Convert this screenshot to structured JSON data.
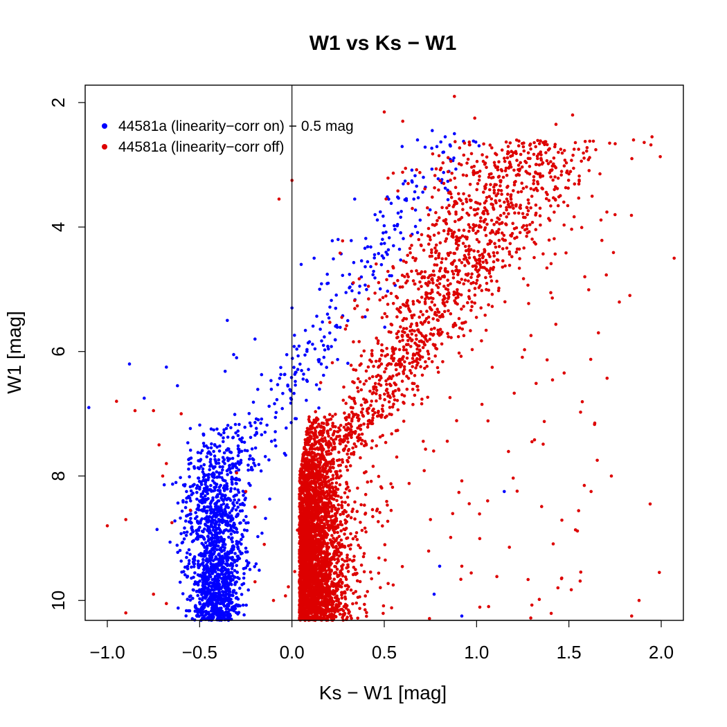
{
  "chart_data": {
    "type": "scatter",
    "title": "W1 vs Ks − W1",
    "xlabel": "Ks − W1 [mag]",
    "ylabel": "W1 [mag]",
    "xlim": [
      -1.12,
      2.12
    ],
    "ylim": [
      10.32,
      1.72
    ],
    "y_inverted": true,
    "x_ticks": [
      -1.0,
      -0.5,
      0.0,
      0.5,
      1.0,
      1.5,
      2.0
    ],
    "x_tick_labels": [
      "−1.0",
      "−0.5",
      "0.0",
      "0.5",
      "1.0",
      "1.5",
      "2.0"
    ],
    "y_ticks": [
      2,
      4,
      6,
      8,
      10
    ],
    "y_tick_labels": [
      "2",
      "4",
      "6",
      "8",
      "10"
    ],
    "vline_x": 0.0,
    "grid": false,
    "legend_position": "top-left",
    "series": [
      {
        "name": "44581a (linearity−corr on) − 0.5 mag",
        "color": "#0000ff",
        "distribution": "Dense clump at Ks−W1 ≈ −0.5 to −0.3 for W1 7.5–10.3, spreading up and to the right toward W1 ≈ 2.5 near Ks−W1 ≈ 0.9",
        "points": [
          [
            -1.1,
            6.9
          ],
          [
            -0.88,
            6.2
          ],
          [
            -0.8,
            6.75
          ],
          [
            -0.68,
            6.25
          ],
          [
            -0.62,
            6.55
          ],
          [
            0.88,
            2.5
          ],
          [
            0.76,
            2.45
          ],
          [
            0.68,
            2.6
          ],
          [
            0.83,
            2.55
          ],
          [
            0.66,
            3.55
          ],
          [
            0.34,
            3.55
          ],
          [
            1.15,
            8.25
          ],
          [
            0.8,
            9.45
          ],
          [
            0.77,
            9.9
          ],
          [
            0.92,
            10.25
          ],
          [
            -0.35,
            5.5
          ],
          [
            -0.2,
            5.8
          ],
          [
            0.05,
            4.6
          ],
          [
            0.12,
            4.5
          ],
          [
            0.25,
            4.2
          ],
          [
            0.45,
            3.8
          ],
          [
            0.55,
            4.3
          ],
          [
            -0.3,
            6.1
          ],
          [
            0.0,
            5.3
          ],
          [
            0.15,
            5.0
          ]
        ]
      },
      {
        "name": "44581a (linearity−corr off)",
        "color": "#dd0000",
        "distribution": "Dense vertical band at Ks−W1 ≈ −0.05 to 0.3 for W1 7.5–10.3, extending up and to the right along a giant branch to W1 ≈ 2.5 near Ks−W1 ≈ 1.5, with sparse outliers",
        "points": [
          [
            0.88,
            1.9
          ],
          [
            1.52,
            2.2
          ],
          [
            1.43,
            2.35
          ],
          [
            1.95,
            2.55
          ],
          [
            1.85,
            2.6
          ],
          [
            0.99,
            2.25
          ],
          [
            0.5,
            2.15
          ],
          [
            0.6,
            2.3
          ],
          [
            2.07,
            4.5
          ],
          [
            1.83,
            5.1
          ],
          [
            1.75,
            3.8
          ],
          [
            1.66,
            5.7
          ],
          [
            1.73,
            8.0
          ],
          [
            1.62,
            8.25
          ],
          [
            1.94,
            8.45
          ],
          [
            1.99,
            9.55
          ],
          [
            1.88,
            10.0
          ],
          [
            1.84,
            10.25
          ],
          [
            1.06,
            8.4
          ],
          [
            0.92,
            9.45
          ],
          [
            0.75,
            8.7
          ],
          [
            1.3,
            7.45
          ],
          [
            1.46,
            9.65
          ],
          [
            -1.0,
            8.8
          ],
          [
            -0.95,
            6.8
          ],
          [
            -0.9,
            8.7
          ],
          [
            -0.85,
            6.95
          ],
          [
            -0.75,
            6.95
          ],
          [
            -0.72,
            7.5
          ],
          [
            -0.7,
            8.0
          ],
          [
            -0.68,
            7.8
          ],
          [
            -0.65,
            8.75
          ],
          [
            -0.6,
            7.0
          ],
          [
            -0.55,
            8.55
          ],
          [
            -0.9,
            10.2
          ],
          [
            -0.75,
            9.9
          ],
          [
            -0.68,
            10.05
          ],
          [
            -0.07,
            3.55
          ],
          [
            0.0,
            3.25
          ],
          [
            -0.3,
            7.95
          ],
          [
            -0.25,
            8.25
          ],
          [
            -0.2,
            8.5
          ],
          [
            -0.15,
            9.1
          ],
          [
            -0.2,
            9.7
          ],
          [
            -0.1,
            10.0
          ]
        ]
      }
    ],
    "generator": {
      "blue_core_count": 1450,
      "red_core_count": 3200,
      "red_branch_count": 1300,
      "blue_branch_count": 260,
      "red_scatter_count": 180
    }
  }
}
